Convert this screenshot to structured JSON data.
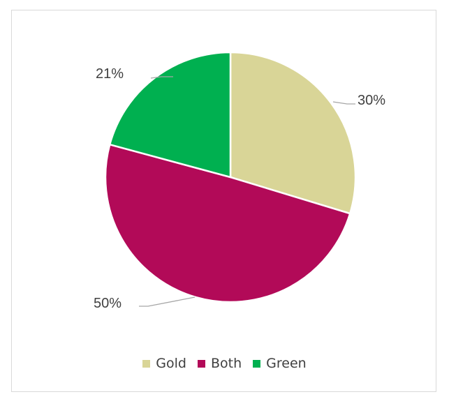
{
  "chart_data": {
    "type": "pie",
    "categories": [
      "Gold",
      "Both",
      "Green"
    ],
    "values": [
      30,
      50,
      21
    ],
    "labels": [
      "30%",
      "50%",
      "21%"
    ],
    "colors": [
      "#d9d597",
      "#b20a58",
      "#00b050"
    ],
    "legend_position": "bottom",
    "start_angle": "12 o'clock",
    "direction": "clockwise",
    "title": ""
  }
}
